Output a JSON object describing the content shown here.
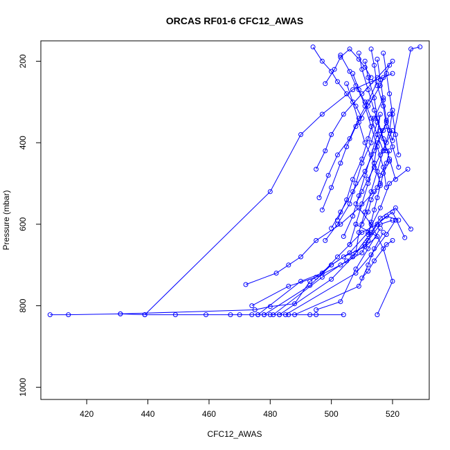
{
  "chart_data": {
    "type": "line",
    "title": "ORCAS RF01-6 CFC12_AWAS",
    "xlabel": "CFC12_AWAS",
    "ylabel": "Pressure (mbar)",
    "xlim": [
      405,
      532
    ],
    "ylim": [
      1030,
      150
    ],
    "y_reversed": true,
    "xticks": [
      420,
      440,
      460,
      480,
      500,
      520
    ],
    "yticks": [
      200,
      400,
      600,
      800,
      1000
    ],
    "grid": false,
    "legend": "none",
    "series_color": "#0000ff",
    "series": [
      {
        "x": [
          408,
          414,
          431,
          439,
          449,
          459,
          467,
          470,
          474,
          476,
          478,
          480,
          483,
          486,
          493,
          495,
          504
        ],
        "y": [
          822,
          822,
          820,
          822,
          822,
          822,
          822,
          822,
          822,
          822,
          822,
          822,
          822,
          822,
          822,
          822,
          822
        ]
      },
      {
        "x": [
          431,
          475,
          480,
          488,
          493,
          500,
          504,
          511,
          515,
          508
        ],
        "y": [
          820,
          810,
          802,
          795,
          740,
          700,
          680,
          655,
          630,
          600
        ]
      },
      {
        "x": [
          439,
          480,
          490,
          497,
          507,
          513,
          517,
          520
        ],
        "y": [
          822,
          520,
          380,
          330,
          270,
          250,
          240,
          230
        ]
      },
      {
        "x": [
          472,
          482,
          486,
          490,
          495,
          503,
          509,
          514
        ],
        "y": [
          748,
          720,
          700,
          680,
          640,
          600,
          560,
          520
        ]
      },
      {
        "x": [
          474,
          486,
          495,
          503,
          510,
          512,
          516,
          520
        ],
        "y": [
          800,
          752,
          730,
          700,
          670,
          640,
          600,
          590
        ]
      },
      {
        "x": [
          476,
          490,
          497,
          502,
          506,
          510,
          515,
          518,
          522
        ],
        "y": [
          822,
          740,
          720,
          680,
          650,
          620,
          600,
          580,
          590
        ]
      },
      {
        "x": [
          478,
          493,
          500,
          506,
          512,
          516,
          519,
          525
        ],
        "y": [
          822,
          750,
          700,
          670,
          620,
          560,
          500,
          465
        ]
      },
      {
        "x": [
          481,
          497,
          505,
          511,
          515,
          520,
          524
        ],
        "y": [
          822,
          730,
          690,
          650,
          600,
          570,
          633
        ]
      },
      {
        "x": [
          483,
          500,
          507,
          513,
          516,
          521,
          526
        ],
        "y": [
          822,
          735,
          680,
          620,
          585,
          560,
          612
        ]
      },
      {
        "x": [
          485,
          508,
          513,
          518,
          521
        ],
        "y": [
          822,
          720,
          675,
          625,
          590
        ]
      },
      {
        "x": [
          488,
          509,
          512,
          514,
          517
        ],
        "y": [
          822,
          752,
          700,
          660,
          620
        ]
      },
      {
        "x": [
          495,
          503,
          508,
          512,
          516
        ],
        "y": [
          810,
          790,
          710,
          660,
          610
        ]
      },
      {
        "x": [
          515,
          520,
          517,
          513,
          509
        ],
        "y": [
          822,
          740,
          660,
          600,
          560
        ]
      },
      {
        "x": [
          510,
          512,
          514,
          518,
          520
        ],
        "y": [
          732,
          715,
          690,
          650,
          640
        ]
      },
      {
        "x": [
          495,
          498,
          500,
          504,
          510,
          515,
          520
        ],
        "y": [
          465,
          420,
          380,
          330,
          280,
          240,
          200
        ]
      },
      {
        "x": [
          496,
          499,
          502,
          506,
          509,
          512,
          515
        ],
        "y": [
          535,
          480,
          430,
          390,
          340,
          300,
          250
        ]
      },
      {
        "x": [
          497,
          500,
          503,
          505,
          508,
          512,
          516,
          519
        ],
        "y": [
          565,
          510,
          450,
          410,
          360,
          310,
          260,
          210
        ]
      },
      {
        "x": [
          498,
          502,
          506,
          508,
          510,
          513,
          515
        ],
        "y": [
          640,
          600,
          550,
          500,
          450,
          400,
          350
        ]
      },
      {
        "x": [
          500,
          503,
          507,
          511,
          514,
          517,
          519
        ],
        "y": [
          610,
          570,
          520,
          470,
          420,
          370,
          330
        ]
      },
      {
        "x": [
          502,
          505,
          507,
          510,
          512,
          514,
          517
        ],
        "y": [
          590,
          540,
          490,
          440,
          390,
          340,
          290
        ]
      },
      {
        "x": [
          504,
          507,
          509,
          511,
          513,
          515,
          516
        ],
        "y": [
          630,
          580,
          530,
          480,
          430,
          380,
          330
        ]
      },
      {
        "x": [
          506,
          508,
          510,
          512,
          514,
          515,
          518
        ],
        "y": [
          650,
          600,
          550,
          500,
          450,
          400,
          350
        ]
      },
      {
        "x": [
          508,
          509,
          511,
          513,
          515,
          517,
          519,
          520
        ],
        "y": [
          670,
          620,
          570,
          520,
          470,
          420,
          370,
          320
        ]
      },
      {
        "x": [
          494,
          497,
          500,
          502,
          505,
          508,
          510
        ],
        "y": [
          165,
          200,
          225,
          250,
          280,
          310,
          340
        ]
      },
      {
        "x": [
          498,
          501,
          503,
          506,
          509,
          511,
          513
        ],
        "y": [
          255,
          220,
          190,
          170,
          195,
          215,
          240
        ]
      },
      {
        "x": [
          503,
          506,
          508,
          511,
          513,
          515,
          517
        ],
        "y": [
          185,
          225,
          260,
          300,
          340,
          380,
          420
        ]
      },
      {
        "x": [
          505,
          507,
          509,
          511,
          514,
          516
        ],
        "y": [
          255,
          300,
          350,
          400,
          450,
          500
        ]
      },
      {
        "x": [
          507,
          509,
          511,
          513,
          515,
          517,
          518
        ],
        "y": [
          230,
          270,
          310,
          360,
          410,
          460,
          510
        ]
      },
      {
        "x": [
          509,
          510,
          512,
          514,
          516,
          518
        ],
        "y": [
          180,
          220,
          270,
          320,
          370,
          420
        ]
      },
      {
        "x": [
          511,
          512,
          514,
          515,
          517,
          519,
          521
        ],
        "y": [
          200,
          240,
          290,
          340,
          390,
          440,
          490
        ]
      },
      {
        "x": [
          513,
          514,
          515,
          517,
          518,
          520,
          522
        ],
        "y": [
          170,
          210,
          260,
          310,
          360,
          410,
          460
        ]
      },
      {
        "x": [
          515,
          516,
          517,
          518,
          520,
          526,
          529
        ],
        "y": [
          195,
          245,
          295,
          345,
          395,
          170,
          165
        ]
      },
      {
        "x": [
          517,
          518,
          519,
          520,
          521,
          522
        ],
        "y": [
          180,
          230,
          280,
          330,
          380,
          430
        ]
      },
      {
        "x": [
          508,
          510,
          512,
          514,
          516,
          518,
          520
        ],
        "y": [
          550,
          520,
          490,
          460,
          430,
          400,
          370
        ]
      },
      {
        "x": [
          510,
          512,
          513,
          515,
          516,
          518,
          519
        ],
        "y": [
          600,
          570,
          540,
          510,
          480,
          450,
          420
        ]
      },
      {
        "x": [
          512,
          513,
          514,
          515,
          516,
          517,
          519
        ],
        "y": [
          625,
          595,
          565,
          535,
          505,
          475,
          445
        ]
      }
    ]
  }
}
